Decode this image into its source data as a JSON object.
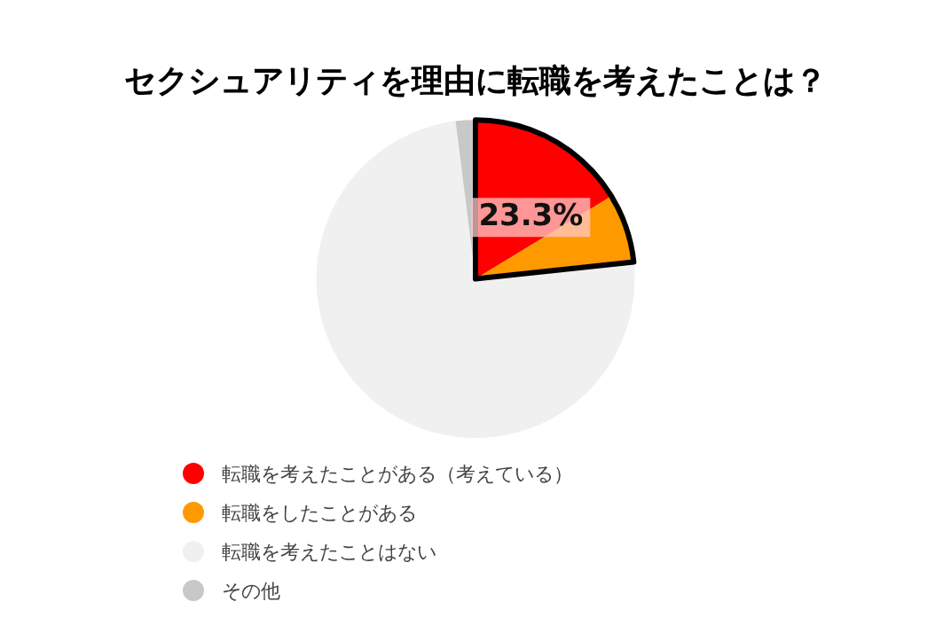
{
  "chart_data": {
    "type": "pie",
    "title": "セクシュアリティを理由に転職を考えたことは？",
    "categories": [
      "転職を考えたことがある（考えている）",
      "転職をしたことがある",
      "転職を考えたことはない",
      "その他"
    ],
    "values": [
      16.3,
      7.0,
      74.7,
      2.0
    ],
    "colors": [
      "#ff0000",
      "#ff9900",
      "#f0f0f0",
      "#c8c8c8"
    ],
    "annotations": [
      "23.3%"
    ],
    "legend": "bottom left"
  }
}
